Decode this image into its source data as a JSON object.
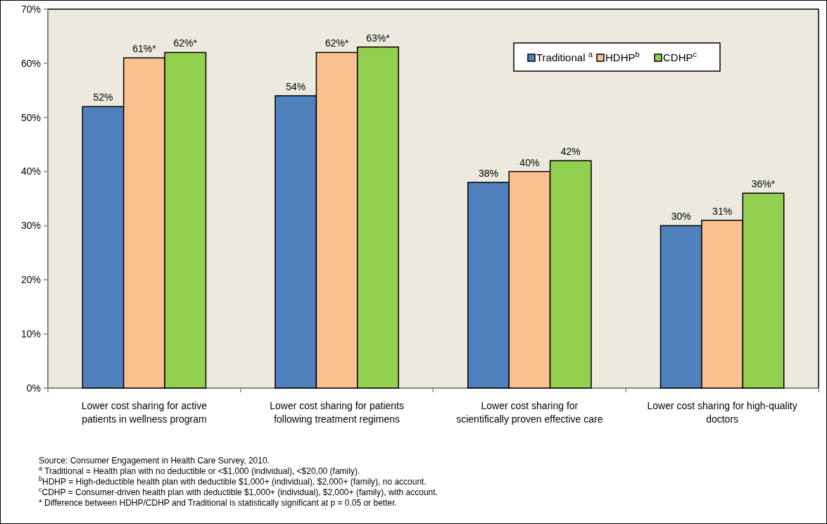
{
  "chart_data": {
    "type": "bar",
    "categories": [
      "Lower cost sharing for active patients in wellness program",
      "Lower cost sharing for patients following treatment regimens",
      "Lower cost sharing for scientifically proven effective care",
      "Lower cost sharing for high-quality doctors"
    ],
    "series": [
      {
        "name": "Traditional $^{a}$",
        "color": "#4f81bd",
        "values": [
          52,
          54,
          38,
          30
        ],
        "value_labels": [
          "52%",
          "54%",
          "38%",
          "30%"
        ]
      },
      {
        "name": "HDHP$^{b}$",
        "color": "#fac090",
        "values": [
          61,
          62,
          40,
          31
        ],
        "value_labels": [
          "61%*",
          "62%*",
          "40%",
          "31%"
        ]
      },
      {
        "name": "CDHP$^{c}$",
        "color": "#92d050",
        "values": [
          62,
          63,
          42,
          36
        ],
        "value_labels": [
          "62%*",
          "63%*",
          "42%",
          "36%*"
        ]
      }
    ],
    "ylim": [
      0,
      70
    ],
    "yticks": [
      {
        "value": 0,
        "label": "0%"
      },
      {
        "value": 10,
        "label": "10%"
      },
      {
        "value": 20,
        "label": "20%"
      },
      {
        "value": 30,
        "label": "30%"
      },
      {
        "value": 40,
        "label": "40%"
      },
      {
        "value": 50,
        "label": "50%"
      },
      {
        "value": 60,
        "label": "60%"
      },
      {
        "value": 70,
        "label": "70%"
      }
    ],
    "grid": false,
    "legend": "top right",
    "annotations": [
      "Source: Consumer Engagement in Health Care Survey, 2010.",
      "$^{a}$ Traditional = Health plan with no deductible or <$1,000 (individual), <$20,00 (family).",
      "$^{b}$HDHP = High-deductible health plan with deductible $1,000+ (individual), $2,000+ (family), no account.",
      "$^{c}$CDHP = Consumer-driven health plan with deductible $1,000+ (individual), $2,000+ (family), with account.",
      "* Difference between HDHP/CDHP and Traditional is statistically significant at p = 0.05 or better."
    ]
  }
}
